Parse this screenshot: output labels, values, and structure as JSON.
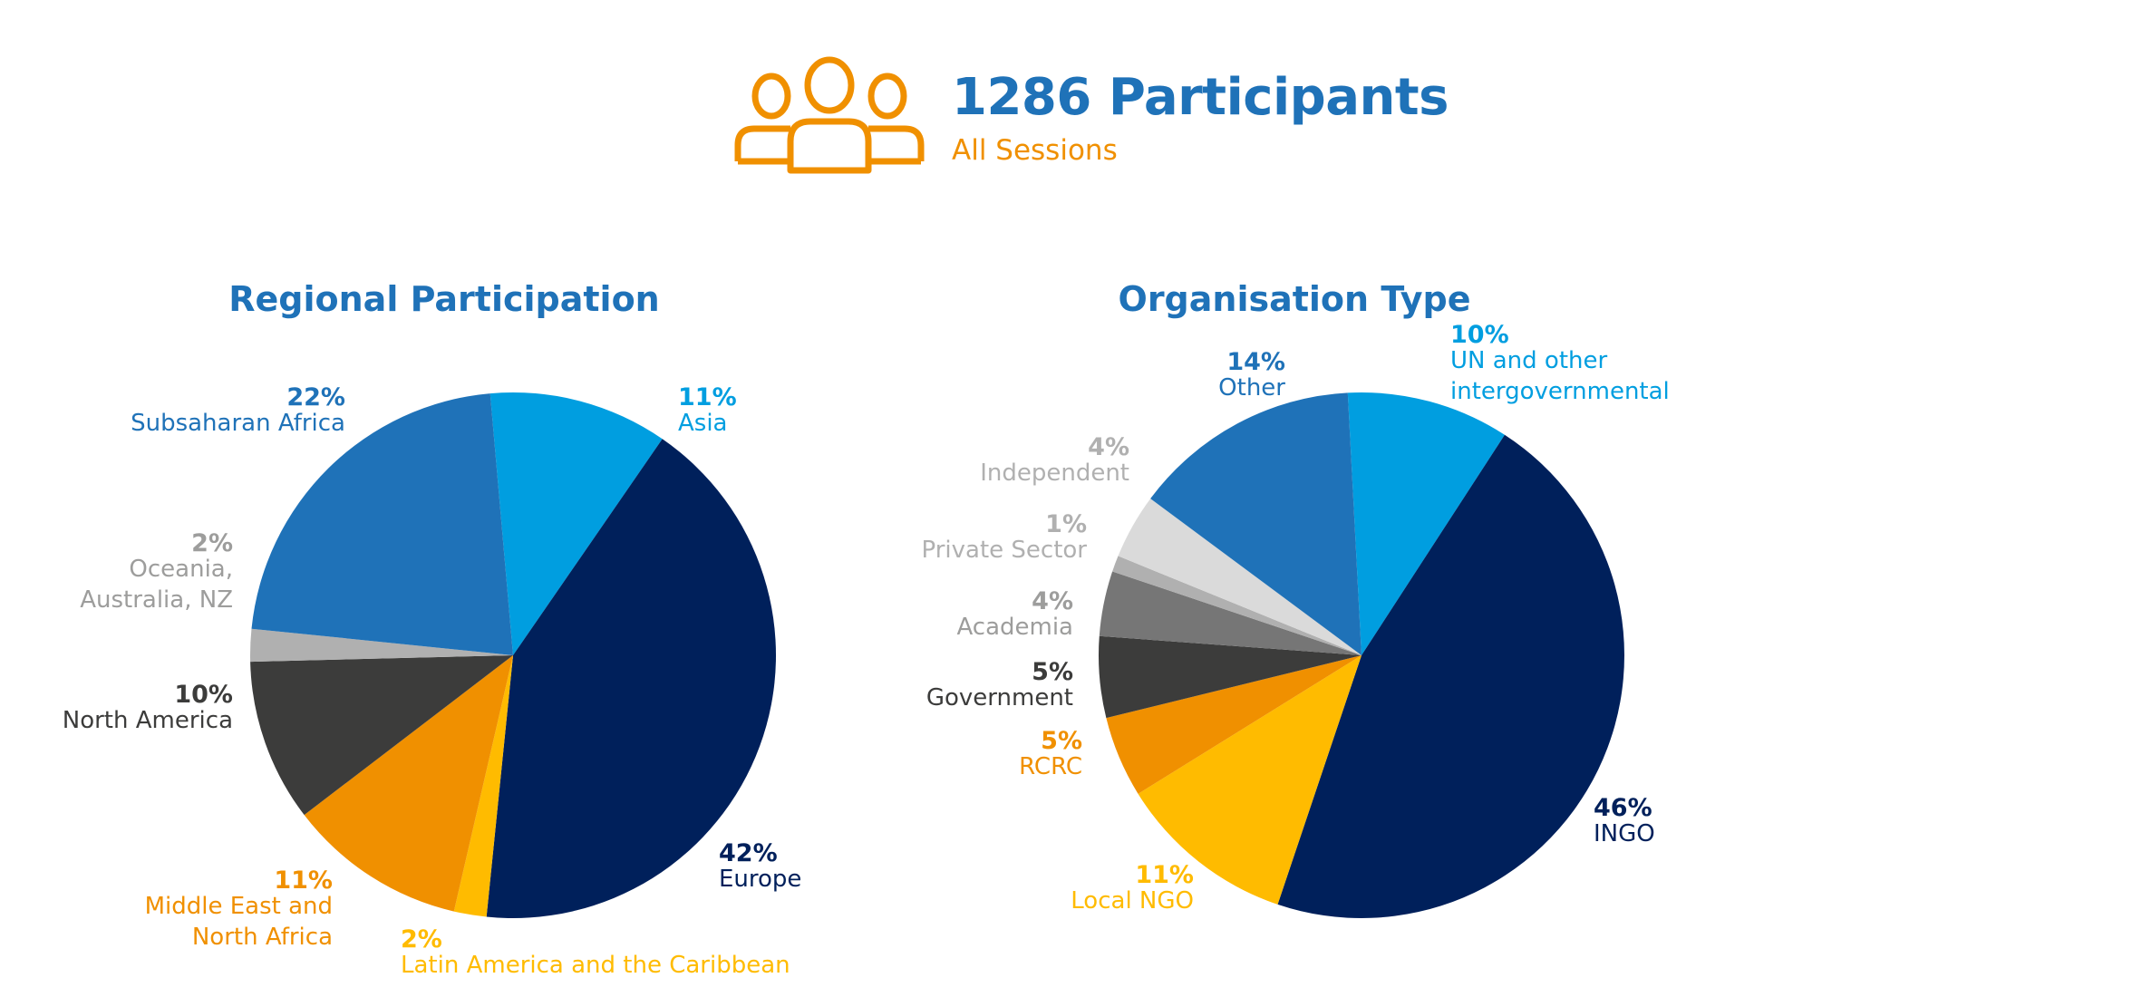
{
  "header": {
    "title": "1286 Participants",
    "subtitle": "All Sessions",
    "icon": "people-group-icon",
    "icon_color": "#f09000"
  },
  "chart_data": [
    {
      "type": "pie",
      "title": "Regional Participation",
      "slices": [
        {
          "pct_label": "11%",
          "name_lines": [
            "Asia"
          ],
          "value": 11,
          "color": "#009ee0",
          "label_color": "#009ee0"
        },
        {
          "pct_label": "42%",
          "name_lines": [
            "Europe"
          ],
          "value": 42,
          "color": "#00205b",
          "label_color": "#00205b"
        },
        {
          "pct_label": "2%",
          "name_lines": [
            "Latin America and the Caribbean"
          ],
          "value": 2,
          "color": "#ffbb00",
          "label_color": "#ffbb00"
        },
        {
          "pct_label": "11%",
          "name_lines": [
            "Middle East and",
            "North Africa"
          ],
          "value": 11,
          "color": "#f09000",
          "label_color": "#f09000"
        },
        {
          "pct_label": "10%",
          "name_lines": [
            "North America"
          ],
          "value": 10,
          "color": "#3c3c3b",
          "label_color": "#3c3c3b"
        },
        {
          "pct_label": "2%",
          "name_lines": [
            "Oceania,",
            "Australia, NZ"
          ],
          "value": 2,
          "color": "#b0b0b0",
          "label_color": "#9d9d9c"
        },
        {
          "pct_label": "22%",
          "name_lines": [
            "Subsaharan Africa"
          ],
          "value": 22,
          "color": "#1f72b8",
          "label_color": "#1f72b8"
        }
      ]
    },
    {
      "type": "pie",
      "title": "Organisation Type",
      "slices": [
        {
          "pct_label": "10%",
          "name_lines": [
            "UN and other",
            "intergovernmental"
          ],
          "value": 10,
          "color": "#009ee0",
          "label_color": "#009ee0"
        },
        {
          "pct_label": "46%",
          "name_lines": [
            "INGO"
          ],
          "value": 46,
          "color": "#00205b",
          "label_color": "#00205b"
        },
        {
          "pct_label": "11%",
          "name_lines": [
            "Local NGO"
          ],
          "value": 11,
          "color": "#ffbb00",
          "label_color": "#ffbb00"
        },
        {
          "pct_label": "5%",
          "name_lines": [
            "RCRC"
          ],
          "value": 5,
          "color": "#f09000",
          "label_color": "#f09000"
        },
        {
          "pct_label": "5%",
          "name_lines": [
            "Government"
          ],
          "value": 5,
          "color": "#3c3c3b",
          "label_color": "#3c3c3b"
        },
        {
          "pct_label": "4%",
          "name_lines": [
            "Academia"
          ],
          "value": 4,
          "color": "#767676",
          "label_color": "#9d9d9c"
        },
        {
          "pct_label": "1%",
          "name_lines": [
            "Private Sector"
          ],
          "value": 1,
          "color": "#b0b0b0",
          "label_color": "#b0b0b0"
        },
        {
          "pct_label": "4%",
          "name_lines": [
            "Independent"
          ],
          "value": 4,
          "color": "#dadada",
          "label_color": "#b0b0b0"
        },
        {
          "pct_label": "14%",
          "name_lines": [
            "Other"
          ],
          "value": 14,
          "color": "#1f72b8",
          "label_color": "#1f72b8"
        }
      ]
    }
  ]
}
